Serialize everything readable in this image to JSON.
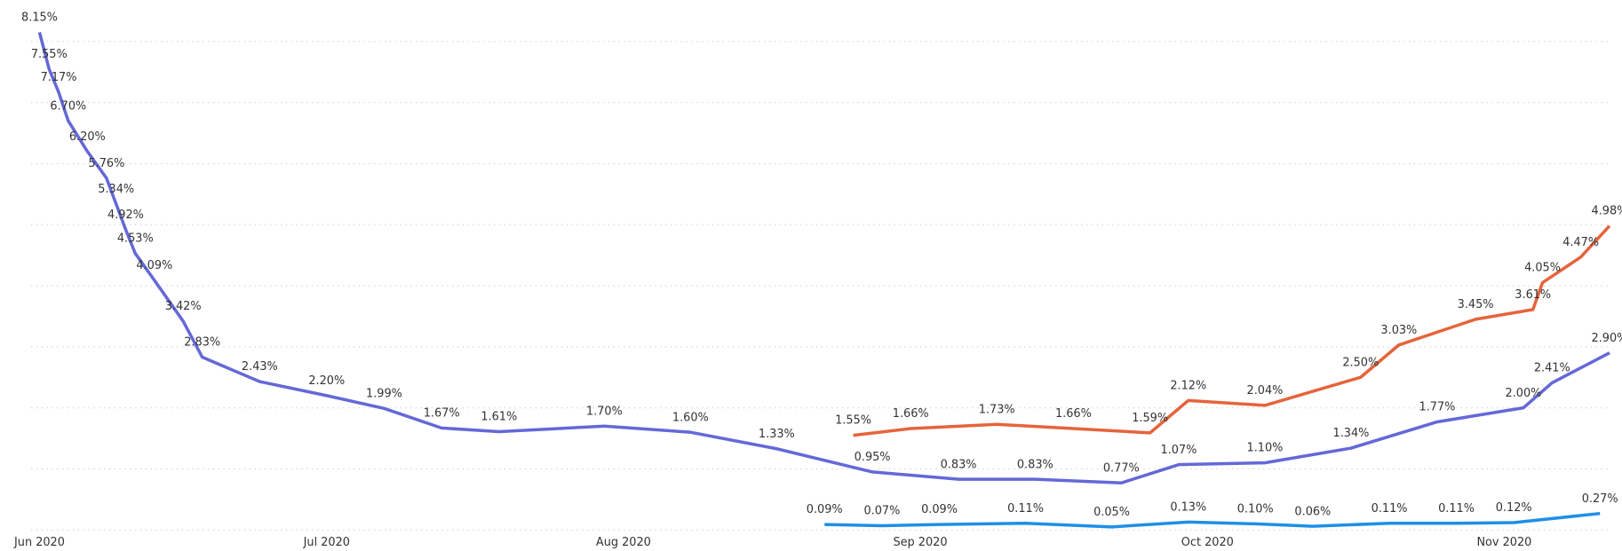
{
  "chart_data": {
    "type": "line",
    "xlim": [
      0,
      164
    ],
    "xticks": [
      {
        "value": 0,
        "label": "Jun 2020"
      },
      {
        "value": 30,
        "label": "Jul 2020"
      },
      {
        "value": 61,
        "label": "Aug 2020"
      },
      {
        "value": 92,
        "label": "Sep 2020"
      },
      {
        "value": 122,
        "label": "Oct 2020"
      },
      {
        "value": 153,
        "label": "Nov 2020"
      }
    ],
    "ylim": [
      0,
      8.25
    ],
    "yticks": [
      0,
      1,
      2,
      3,
      4,
      5,
      6,
      7,
      8
    ],
    "grid": true,
    "series": [
      {
        "color": "#6468d8",
        "x": [
          0,
          1,
          2,
          3,
          5,
          7,
          8,
          9,
          10,
          12,
          15,
          17,
          23,
          30,
          36,
          42,
          48,
          59,
          68,
          77,
          87,
          96,
          104,
          113,
          119,
          128,
          137,
          146,
          155,
          158,
          164
        ],
        "values": [
          8.15,
          7.55,
          7.17,
          6.7,
          6.2,
          5.76,
          5.34,
          4.92,
          4.53,
          4.09,
          3.42,
          2.83,
          2.43,
          2.2,
          1.99,
          1.67,
          1.61,
          1.7,
          1.6,
          1.33,
          0.95,
          0.83,
          0.83,
          0.77,
          1.07,
          1.1,
          1.34,
          1.77,
          2.0,
          2.41,
          2.9
        ],
        "value_labels": [
          "8.15%",
          "7.55%",
          "7.17%",
          "6.70%",
          "6.20%",
          "5.76%",
          "5.34%",
          "4.92%",
          "4.53%",
          "4.09%",
          "3.42%",
          "2.83%",
          "2.43%",
          "2.20%",
          "1.99%",
          "1.67%",
          "1.61%",
          "1.70%",
          "1.60%",
          "1.33%",
          "0.95%",
          "0.83%",
          "0.83%",
          "0.77%",
          "1.07%",
          "1.10%",
          "1.34%",
          "1.77%",
          "2.00%",
          "2.41%",
          "2.90%"
        ]
      },
      {
        "color": "#e5643b",
        "x": [
          85,
          91,
          100,
          108,
          116,
          120,
          128,
          138,
          142,
          150,
          156,
          157,
          161,
          164
        ],
        "values": [
          1.55,
          1.66,
          1.73,
          1.66,
          1.59,
          2.12,
          2.04,
          2.5,
          3.03,
          3.45,
          3.61,
          4.05,
          4.47,
          4.98
        ],
        "value_labels": [
          "1.55%",
          "1.66%",
          "1.73%",
          "1.66%",
          "1.59%",
          "2.12%",
          "2.04%",
          "2.50%",
          "3.03%",
          "3.45%",
          "3.61%",
          "4.05%",
          "4.47%",
          "4.98%"
        ]
      },
      {
        "color": "#1f8fe6",
        "x": [
          82,
          88,
          94,
          103,
          112,
          120,
          127,
          133,
          141,
          148,
          154,
          163
        ],
        "values": [
          0.09,
          0.07,
          0.09,
          0.11,
          0.05,
          0.13,
          0.1,
          0.06,
          0.11,
          0.11,
          0.12,
          0.27
        ],
        "value_labels": [
          "0.09%",
          "0.07%",
          "0.09%",
          "0.11%",
          "0.05%",
          "0.13%",
          "0.10%",
          "0.06%",
          "0.11%",
          "0.11%",
          "0.12%",
          "0.27%"
        ]
      }
    ]
  }
}
